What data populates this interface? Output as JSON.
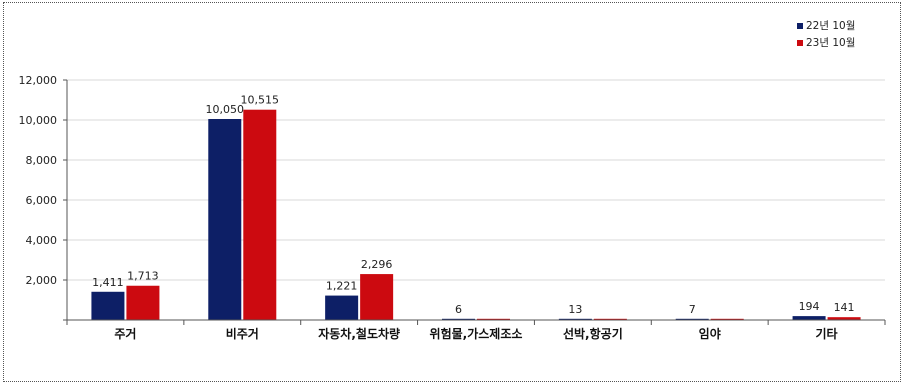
{
  "chart_data": {
    "type": "bar",
    "categories": [
      "주거",
      "비주거",
      "자동차,철도차량",
      "위험물,가스제조소",
      "선박,항공기",
      "임야",
      "기타"
    ],
    "series": [
      {
        "name": "22년 10월",
        "color": "#0d1f66",
        "values": [
          1411,
          10050,
          1221,
          6,
          13,
          7,
          194
        ],
        "labels": [
          "1,411",
          "10,050",
          "1,221",
          "6",
          "13",
          "7",
          "194"
        ]
      },
      {
        "name": "23년 10월",
        "color": "#cc0a10",
        "values": [
          1713,
          10515,
          2296,
          3,
          1,
          2,
          141
        ],
        "labels": [
          "1,713",
          "10,515",
          "2,296",
          "",
          "",
          "",
          "141"
        ]
      }
    ],
    "ylim": [
      0,
      12000
    ],
    "yticks": [
      0,
      2000,
      4000,
      6000,
      8000,
      10000,
      12000
    ],
    "ytick_labels": [
      "",
      "2,000",
      "4,000",
      "6,000",
      "8,000",
      "10,000",
      "12,000"
    ],
    "grid": true,
    "legend_position": "top-right"
  }
}
